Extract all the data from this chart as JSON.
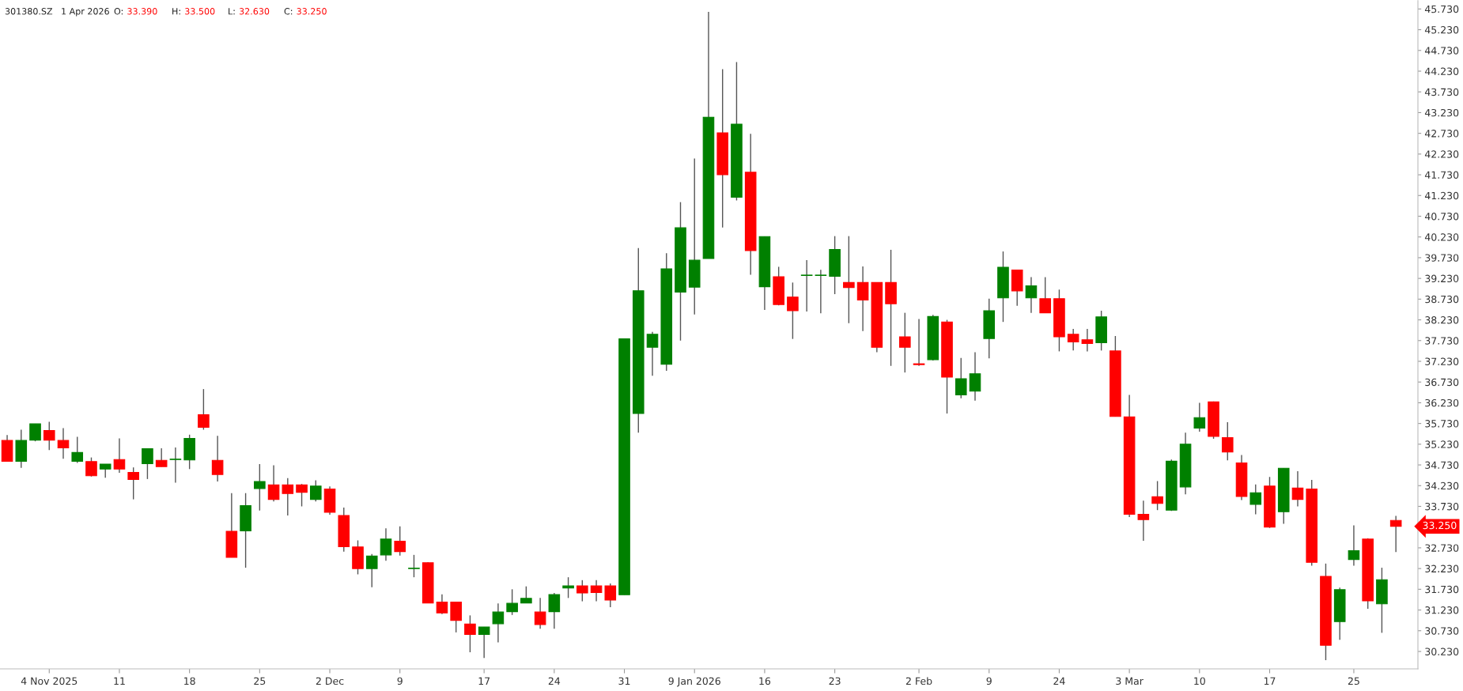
{
  "chart_data": {
    "type": "candlestick",
    "title": "301380.SZ",
    "subtitle": "1 Apr 2026",
    "annotations": [
      "O: 33.390",
      "H: 33.500",
      "L: 32.630",
      "C: 33.250",
      "33.250"
    ],
    "categories": [
      null,
      null,
      null,
      "4 Nov 2025",
      null,
      null,
      null,
      null,
      "11",
      null,
      null,
      null,
      null,
      "18",
      null,
      null,
      null,
      null,
      "25",
      null,
      null,
      null,
      null,
      "2 Dec",
      null,
      null,
      null,
      null,
      "9",
      null,
      null,
      null,
      null,
      null,
      "17",
      null,
      null,
      null,
      null,
      "24",
      null,
      null,
      null,
      null,
      "31",
      null,
      null,
      null,
      null,
      "9 Jan 2026",
      null,
      null,
      null,
      null,
      "16",
      null,
      null,
      null,
      null,
      "23",
      null,
      null,
      null,
      null,
      null,
      "2 Feb",
      null,
      null,
      null,
      null,
      "9",
      null,
      null,
      null,
      null,
      "24",
      null,
      null,
      null,
      null,
      "3 Mar",
      null,
      null,
      null,
      null,
      "10",
      null,
      null,
      null,
      null,
      "17",
      null,
      null,
      null,
      null,
      null,
      "25",
      null,
      null,
      null
    ],
    "ohlc": [
      [
        35.32,
        35.45,
        34.82,
        34.82
      ],
      [
        34.82,
        35.58,
        34.66,
        35.32
      ],
      [
        35.33,
        35.72,
        35.3,
        35.72
      ],
      [
        35.56,
        35.77,
        35.09,
        35.33
      ],
      [
        35.32,
        35.62,
        34.88,
        35.14
      ],
      [
        34.82,
        35.41,
        34.78,
        35.03
      ],
      [
        34.81,
        34.91,
        34.45,
        34.47
      ],
      [
        34.63,
        34.75,
        34.42,
        34.75
      ],
      [
        34.86,
        35.37,
        34.54,
        34.63
      ],
      [
        34.55,
        34.67,
        33.9,
        34.38
      ],
      [
        34.76,
        35.12,
        34.39,
        35.12
      ],
      [
        34.84,
        35.13,
        34.69,
        34.69
      ],
      [
        34.86,
        35.15,
        34.3,
        34.87
      ],
      [
        34.85,
        35.46,
        34.63,
        35.37
      ],
      [
        35.94,
        36.56,
        35.58,
        35.64
      ],
      [
        34.84,
        35.43,
        34.33,
        34.5
      ],
      [
        33.13,
        34.05,
        32.5,
        32.5
      ],
      [
        33.14,
        34.05,
        32.25,
        33.75
      ],
      [
        34.16,
        34.75,
        33.63,
        34.33
      ],
      [
        34.25,
        34.72,
        33.85,
        33.9
      ],
      [
        34.25,
        34.41,
        33.51,
        34.04
      ],
      [
        34.25,
        34.27,
        33.73,
        34.07
      ],
      [
        33.9,
        34.36,
        33.85,
        34.22
      ],
      [
        34.15,
        34.21,
        33.53,
        33.59
      ],
      [
        33.51,
        33.7,
        32.64,
        32.76
      ],
      [
        32.75,
        32.91,
        32.09,
        32.23
      ],
      [
        32.23,
        32.58,
        31.78,
        32.53
      ],
      [
        32.56,
        33.2,
        32.42,
        32.94
      ],
      [
        32.89,
        33.25,
        32.54,
        32.64
      ],
      [
        32.23,
        32.56,
        32.02,
        32.24
      ],
      [
        32.37,
        32.38,
        31.4,
        31.4
      ],
      [
        31.42,
        31.61,
        31.13,
        31.16
      ],
      [
        31.42,
        31.43,
        30.69,
        30.98
      ],
      [
        30.89,
        31.1,
        30.21,
        30.64
      ],
      [
        30.64,
        30.82,
        30.07,
        30.82
      ],
      [
        30.9,
        31.39,
        30.45,
        31.18
      ],
      [
        31.19,
        31.73,
        31.11,
        31.39
      ],
      [
        31.4,
        31.8,
        31.4,
        31.51
      ],
      [
        31.18,
        31.52,
        30.78,
        30.88
      ],
      [
        31.19,
        31.64,
        30.78,
        31.6
      ],
      [
        31.76,
        32.02,
        31.52,
        31.81
      ],
      [
        31.81,
        31.95,
        31.44,
        31.64
      ],
      [
        31.81,
        31.95,
        31.44,
        31.65
      ],
      [
        31.81,
        31.87,
        31.3,
        31.47
      ],
      [
        31.6,
        37.77,
        31.6,
        37.77
      ],
      [
        35.97,
        39.96,
        35.51,
        38.93
      ],
      [
        37.57,
        37.94,
        36.88,
        37.88
      ],
      [
        37.16,
        39.84,
        37.0,
        39.46
      ],
      [
        38.9,
        41.07,
        37.73,
        40.45
      ],
      [
        39.02,
        42.12,
        38.36,
        39.67
      ],
      [
        39.71,
        45.66,
        39.71,
        43.12
      ],
      [
        42.74,
        44.28,
        40.46,
        41.73
      ],
      [
        41.19,
        44.45,
        41.11,
        42.95
      ],
      [
        41.79,
        42.72,
        39.32,
        39.9
      ],
      [
        39.03,
        40.24,
        38.47,
        40.24
      ],
      [
        39.27,
        39.51,
        38.58,
        38.6
      ],
      [
        38.78,
        39.13,
        37.77,
        38.45
      ],
      [
        39.3,
        39.67,
        38.43,
        39.31
      ],
      [
        39.3,
        39.44,
        38.39,
        39.31
      ],
      [
        39.28,
        40.25,
        38.85,
        39.93
      ],
      [
        39.13,
        40.25,
        38.15,
        39.01
      ],
      [
        39.13,
        39.52,
        37.96,
        38.71
      ],
      [
        39.13,
        39.13,
        37.45,
        37.57
      ],
      [
        39.13,
        39.92,
        37.12,
        38.62
      ],
      [
        37.82,
        38.4,
        36.96,
        37.57
      ],
      [
        37.17,
        38.25,
        37.12,
        37.15
      ],
      [
        37.27,
        38.35,
        37.25,
        38.31
      ],
      [
        38.18,
        38.23,
        35.97,
        36.85
      ],
      [
        36.42,
        37.31,
        36.34,
        36.81
      ],
      [
        36.51,
        37.45,
        36.28,
        36.93
      ],
      [
        37.78,
        38.74,
        37.3,
        38.45
      ],
      [
        38.76,
        39.88,
        38.18,
        39.5
      ],
      [
        39.43,
        39.44,
        38.57,
        38.93
      ],
      [
        38.76,
        39.26,
        38.4,
        39.05
      ],
      [
        38.74,
        39.26,
        38.4,
        38.4
      ],
      [
        38.74,
        38.96,
        37.47,
        37.82
      ],
      [
        37.88,
        38.01,
        37.49,
        37.7
      ],
      [
        37.75,
        38.01,
        37.47,
        37.66
      ],
      [
        37.68,
        38.45,
        37.49,
        38.3
      ],
      [
        37.48,
        37.84,
        35.9,
        35.9
      ],
      [
        35.89,
        36.42,
        33.47,
        33.54
      ],
      [
        33.54,
        33.87,
        32.9,
        33.41
      ],
      [
        33.96,
        34.34,
        33.64,
        33.8
      ],
      [
        33.64,
        34.86,
        33.62,
        34.82
      ],
      [
        34.2,
        35.51,
        34.02,
        35.23
      ],
      [
        35.62,
        36.23,
        35.53,
        35.87
      ],
      [
        36.25,
        36.26,
        35.36,
        35.42
      ],
      [
        35.39,
        35.76,
        34.84,
        35.04
      ],
      [
        34.78,
        34.97,
        33.88,
        33.97
      ],
      [
        33.78,
        34.26,
        33.54,
        34.06
      ],
      [
        34.22,
        34.44,
        33.21,
        33.23
      ],
      [
        33.6,
        34.65,
        33.31,
        34.65
      ],
      [
        34.17,
        34.58,
        33.73,
        33.9
      ],
      [
        34.15,
        34.37,
        32.3,
        32.38
      ],
      [
        32.04,
        32.35,
        30.02,
        30.38
      ],
      [
        30.95,
        31.77,
        30.51,
        31.72
      ],
      [
        32.45,
        33.27,
        32.3,
        32.66
      ],
      [
        32.94,
        32.96,
        31.26,
        31.45
      ],
      [
        31.38,
        32.25,
        30.68,
        31.96
      ],
      [
        33.39,
        33.5,
        32.63,
        33.25
      ]
    ],
    "colors": [
      "#ff0000",
      "#008000",
      "#008000",
      "#ff0000",
      "#ff0000",
      "#008000",
      "#ff0000",
      "#008000",
      "#ff0000",
      "#ff0000",
      "#008000",
      "#ff0000",
      "#008000",
      "#008000",
      "#ff0000",
      "#ff0000",
      "#ff0000",
      "#008000",
      "#008000",
      "#ff0000",
      "#ff0000",
      "#ff0000",
      "#008000",
      "#ff0000",
      "#ff0000",
      "#ff0000",
      "#008000",
      "#008000",
      "#ff0000",
      "#008000",
      "#ff0000",
      "#ff0000",
      "#ff0000",
      "#ff0000",
      "#008000",
      "#008000",
      "#008000",
      "#008000",
      "#ff0000",
      "#008000",
      "#008000",
      "#ff0000",
      "#ff0000",
      "#ff0000",
      "#008000",
      "#008000",
      "#008000",
      "#008000",
      "#008000",
      "#008000",
      "#008000",
      "#ff0000",
      "#008000",
      "#ff0000",
      "#008000",
      "#ff0000",
      "#ff0000",
      "#008000",
      "#008000",
      "#008000",
      "#ff0000",
      "#ff0000",
      "#ff0000",
      "#ff0000",
      "#ff0000",
      "#ff0000",
      "#008000",
      "#ff0000",
      "#008000",
      "#008000",
      "#008000",
      "#008000",
      "#ff0000",
      "#008000",
      "#ff0000",
      "#ff0000",
      "#ff0000",
      "#ff0000",
      "#008000",
      "#ff0000",
      "#ff0000",
      "#ff0000",
      "#ff0000",
      "#008000",
      "#008000",
      "#008000",
      "#ff0000",
      "#ff0000",
      "#ff0000",
      "#008000",
      "#ff0000",
      "#008000",
      "#ff0000",
      "#ff0000",
      "#ff0000",
      "#008000",
      "#008000",
      "#ff0000",
      "#008000",
      "#ff0000"
    ],
    "ylim": [
      29.81,
      45.93
    ],
    "yticks": [
      {
        "value": 30.23,
        "label": "30.230"
      },
      {
        "value": 30.73,
        "label": "30.730"
      },
      {
        "value": 31.23,
        "label": "31.230"
      },
      {
        "value": 31.73,
        "label": "31.730"
      },
      {
        "value": 32.23,
        "label": "32.230"
      },
      {
        "value": 32.73,
        "label": "32.730"
      },
      {
        "value": 33.23,
        "label": null
      },
      {
        "value": 33.73,
        "label": "33.730"
      },
      {
        "value": 34.23,
        "label": "34.230"
      },
      {
        "value": 34.73,
        "label": "34.730"
      },
      {
        "value": 35.23,
        "label": "35.230"
      },
      {
        "value": 35.73,
        "label": "35.730"
      },
      {
        "value": 36.23,
        "label": "36.230"
      },
      {
        "value": 36.73,
        "label": "36.730"
      },
      {
        "value": 37.23,
        "label": "37.230"
      },
      {
        "value": 37.73,
        "label": "37.730"
      },
      {
        "value": 38.23,
        "label": "38.230"
      },
      {
        "value": 38.73,
        "label": "38.730"
      },
      {
        "value": 39.23,
        "label": "39.230"
      },
      {
        "value": 39.73,
        "label": "39.730"
      },
      {
        "value": 40.23,
        "label": "40.230"
      },
      {
        "value": 40.73,
        "label": "40.730"
      },
      {
        "value": 41.23,
        "label": "41.230"
      },
      {
        "value": 41.73,
        "label": "41.730"
      },
      {
        "value": 42.23,
        "label": "42.230"
      },
      {
        "value": 42.73,
        "label": "42.730"
      },
      {
        "value": 43.23,
        "label": "43.230"
      },
      {
        "value": 43.73,
        "label": "43.730"
      },
      {
        "value": 44.23,
        "label": "44.230"
      },
      {
        "value": 44.73,
        "label": "44.730"
      },
      {
        "value": 45.23,
        "label": "45.230"
      },
      {
        "value": 45.73,
        "label": "45.730"
      }
    ],
    "grid": false,
    "legend": false
  }
}
